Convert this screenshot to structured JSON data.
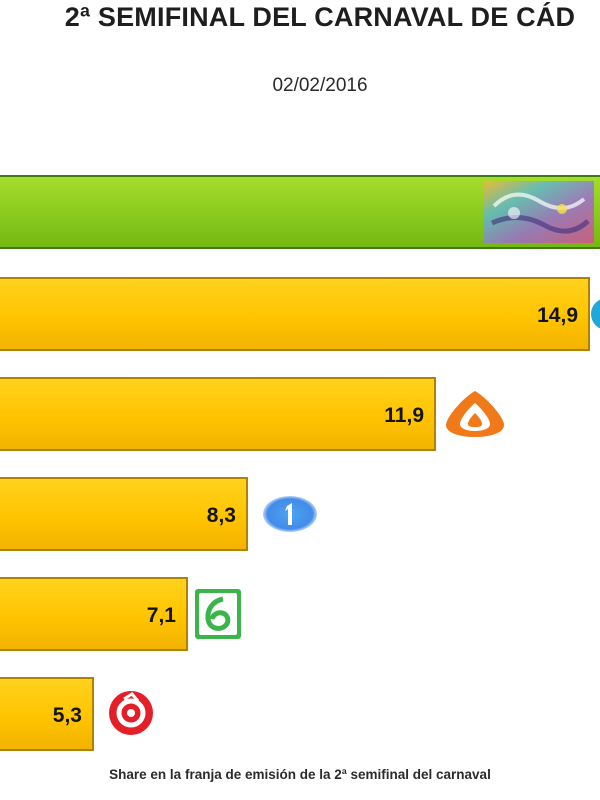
{
  "chart_data": {
    "type": "bar",
    "orientation": "horizontal",
    "title": "2ª SEMIFINAL DEL CARNAVAL DE CÁD",
    "subtitle": "02/02/2016",
    "footnote": "Share en la franja de emisión de la 2ª semifinal del carnaval",
    "categories": [
      "canal-sur",
      "cuatro",
      "antena-3",
      "la-1",
      "la-sexta",
      "telecinco"
    ],
    "values": [
      null,
      14.9,
      11.9,
      8.3,
      7.1,
      5.3
    ],
    "value_labels": [
      "",
      "14,9",
      "11,9",
      "8,3",
      "7,1",
      "5,3"
    ],
    "colors": [
      "#86c81c",
      "#ffc800",
      "#ffc800",
      "#ffc800",
      "#ffc800",
      "#ffc800"
    ],
    "grid": false,
    "legend": "none"
  }
}
